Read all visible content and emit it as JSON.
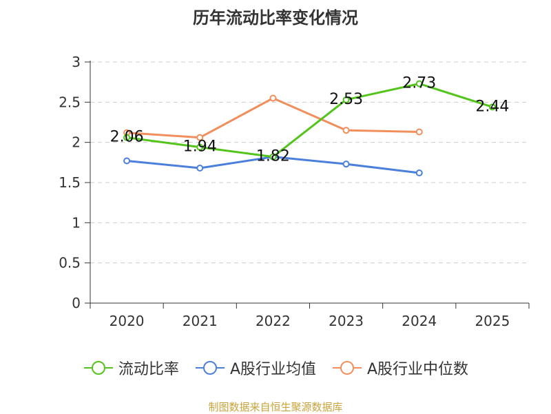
{
  "chart_data": {
    "type": "line",
    "title": "历年流动比率变化情况",
    "categories": [
      "2020",
      "2021",
      "2022",
      "2023",
      "2024",
      "2025"
    ],
    "y_ticks": [
      "0",
      "0.5",
      "1",
      "1.5",
      "2",
      "2.5",
      "3"
    ],
    "ylim": [
      0,
      3
    ],
    "grid": true,
    "legend_position": "bottom",
    "series": [
      {
        "name": "流动比率",
        "color": "#52c41a",
        "values": [
          2.06,
          1.94,
          1.82,
          2.53,
          2.73,
          2.44
        ],
        "labels": [
          "2.06",
          "1.94",
          "1.82",
          "2.53",
          "2.73",
          "2.44"
        ]
      },
      {
        "name": "A股行业均值",
        "color": "#4a7fdc",
        "values": [
          1.77,
          1.68,
          1.82,
          1.73,
          1.62,
          null
        ]
      },
      {
        "name": "A股行业中位数",
        "color": "#f28e5b",
        "values": [
          2.12,
          2.06,
          2.55,
          2.15,
          2.13,
          null
        ]
      }
    ],
    "source": "制图数据来自恒生聚源数据库"
  }
}
